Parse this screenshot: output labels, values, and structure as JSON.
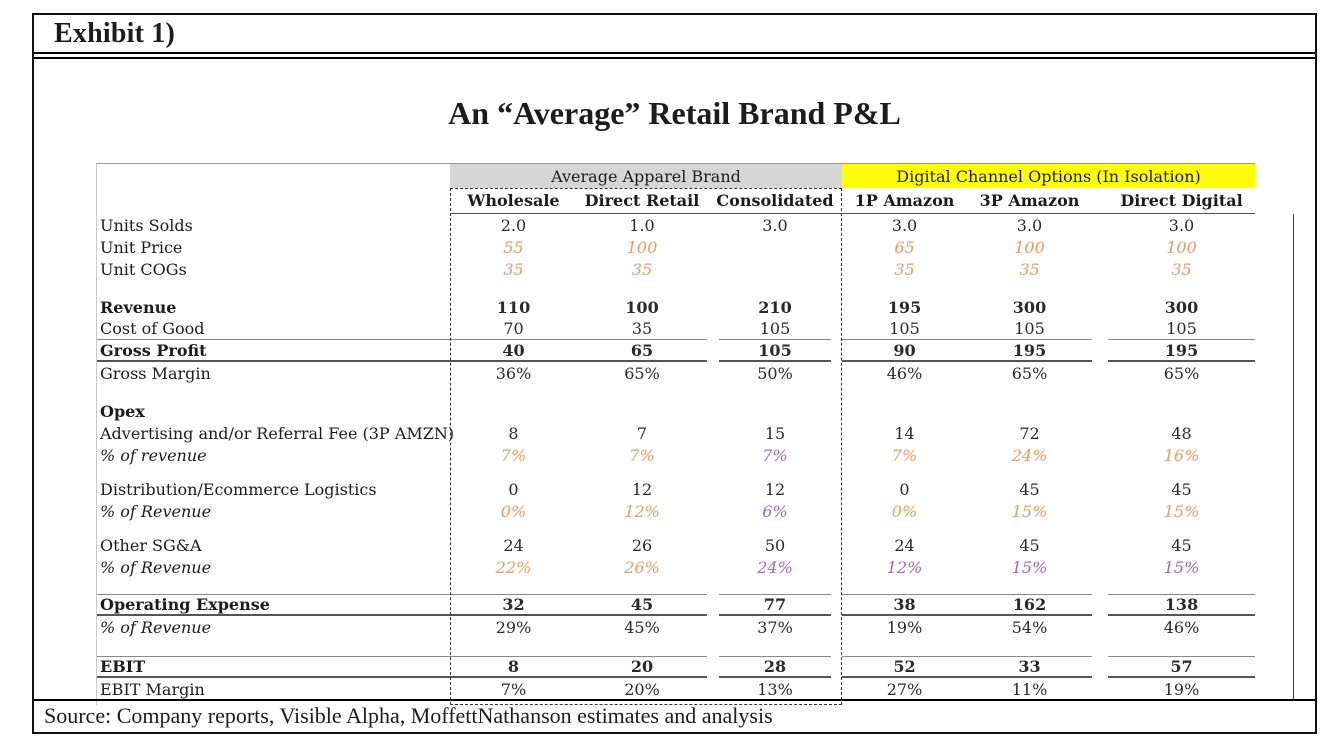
{
  "exhibit_label": "Exhibit 1)",
  "title": "An “Average” Retail Brand P&L",
  "source": "Source: Company reports, Visible Alpha, MoffettNathanson estimates and analysis",
  "colors": {
    "orange": "#F4975F",
    "purple": "#A566CF",
    "yellow_band": "#FFFF00",
    "gray_band": "#D6D6D6"
  },
  "table": {
    "groups": [
      {
        "label": "Average Apparel Brand"
      },
      {
        "label": "Digital Channel Options (In Isolation)"
      }
    ],
    "columns": [
      "Wholesale",
      "Direct Retail",
      "Consolidated",
      "1P Amazon",
      "3P Amazon",
      "Direct Digital"
    ],
    "rows": [
      {
        "label": "Units Solds",
        "values": [
          "2.0",
          "1.0",
          "3.0",
          "3.0",
          "3.0",
          "3.0"
        ]
      },
      {
        "label": "Unit Price",
        "values": [
          "55",
          "100",
          "",
          "65",
          "100",
          "100"
        ],
        "colors": [
          "o",
          "o",
          "",
          "o",
          "o",
          "o"
        ]
      },
      {
        "label": "Unit COGs",
        "values": [
          "35",
          "35",
          "",
          "35",
          "35",
          "35"
        ],
        "colors": [
          "o",
          "o",
          "",
          "o",
          "o",
          "o"
        ]
      },
      {
        "label": "Revenue",
        "bold": true,
        "gap_before": 16,
        "values": [
          "110",
          "100",
          "210",
          "195",
          "300",
          "300"
        ]
      },
      {
        "label": "Cost of Good",
        "border": "thin-bottom",
        "values": [
          "70",
          "35",
          "105",
          "105",
          "105",
          "105"
        ]
      },
      {
        "label": "Gross Profit",
        "bold": true,
        "border": "thick-bottom",
        "values": [
          "40",
          "65",
          "105",
          "90",
          "195",
          "195"
        ]
      },
      {
        "label": "Gross Margin",
        "values": [
          "36%",
          "65%",
          "50%",
          "46%",
          "65%",
          "65%"
        ]
      },
      {
        "label": "Opex",
        "bold": true,
        "gap_before": 16,
        "values": [
          "",
          "",
          "",
          "",
          "",
          ""
        ]
      },
      {
        "label": "Advertising and/or Referral Fee (3P AMZN)",
        "values": [
          "8",
          "7",
          "15",
          "14",
          "72",
          "48"
        ]
      },
      {
        "label": "% of revenue",
        "italic": true,
        "values": [
          "7%",
          "7%",
          "7%",
          "7%",
          "24%",
          "16%"
        ],
        "colors": [
          "o",
          "o",
          "p",
          "o",
          "o",
          "o"
        ]
      },
      {
        "label": "Distribution/Ecommerce Logistics",
        "gap_before": 12,
        "values": [
          "0",
          "12",
          "12",
          "0",
          "45",
          "45"
        ]
      },
      {
        "label": "% of Revenue",
        "italic": true,
        "values": [
          "0%",
          "12%",
          "6%",
          "0%",
          "15%",
          "15%"
        ],
        "colors": [
          "o",
          "o",
          "p",
          "o",
          "o",
          "o"
        ]
      },
      {
        "label": "Other SG&A",
        "gap_before": 12,
        "values": [
          "24",
          "26",
          "50",
          "24",
          "45",
          "45"
        ]
      },
      {
        "label": "% of Revenue",
        "italic": true,
        "values": [
          "22%",
          "26%",
          "24%",
          "12%",
          "15%",
          "15%"
        ],
        "colors": [
          "o",
          "o",
          "p",
          "p",
          "p",
          "p"
        ]
      },
      {
        "label": "Operating Expense",
        "bold": true,
        "gap_before": 16,
        "border": "thin-top thick-bottom",
        "values": [
          "32",
          "45",
          "77",
          "38",
          "162",
          "138"
        ]
      },
      {
        "label": "% of Revenue",
        "italic": true,
        "values": [
          "29%",
          "45%",
          "37%",
          "19%",
          "54%",
          "46%"
        ]
      },
      {
        "label": "EBIT",
        "bold": true,
        "gap_before": 18,
        "border": "thin-top thick-bottom",
        "values": [
          "8",
          "20",
          "28",
          "52",
          "33",
          "57"
        ]
      },
      {
        "label": "EBIT Margin",
        "values": [
          "7%",
          "20%",
          "13%",
          "27%",
          "11%",
          "19%"
        ]
      }
    ]
  }
}
